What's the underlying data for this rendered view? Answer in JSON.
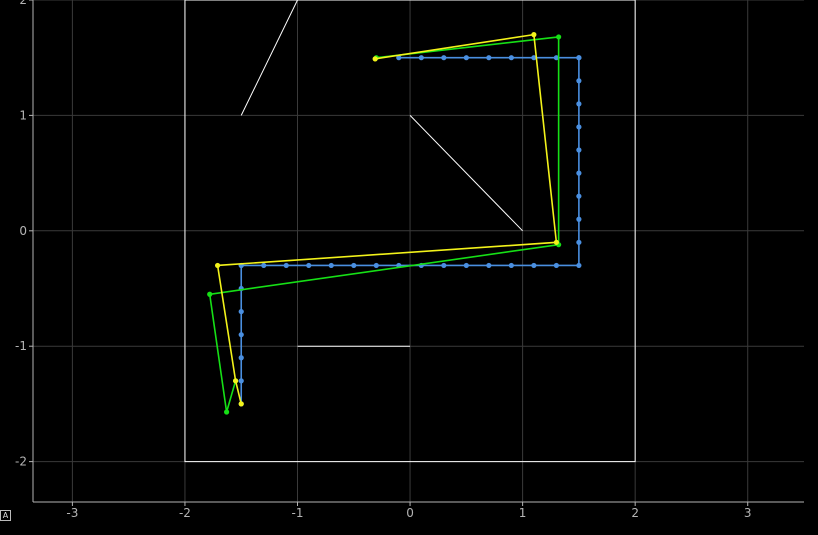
{
  "corner_button": {
    "label": "A"
  },
  "chart_data": {
    "type": "line",
    "xlim": [
      -3.35,
      3.5
    ],
    "ylim": [
      -2.35,
      2.0
    ],
    "x_ticks": [
      -3,
      -2,
      -1,
      0,
      1,
      2,
      3
    ],
    "y_ticks": [
      -2,
      -1,
      0,
      1,
      2
    ],
    "x_tick_labels": [
      "-3",
      "-2",
      "-1",
      "0",
      "1",
      "2",
      "3"
    ],
    "y_tick_labels": [
      "-2",
      "-1",
      "0",
      "1",
      "2"
    ],
    "grid": true,
    "title": "",
    "xlabel": "",
    "ylabel": "",
    "colors": {
      "grid": "#3a3a3a",
      "axis": "#b4b4b4",
      "walls": "#ffffff",
      "blue": "#4a8fe0",
      "green": "#16e016",
      "yellow": "#f3f31a"
    },
    "walls": [
      {
        "x": [
          -2,
          2,
          2,
          -2,
          -2
        ],
        "y": [
          2,
          2,
          -2,
          -2,
          2
        ]
      },
      {
        "x": [
          -1.5,
          -1
        ],
        "y": [
          1,
          2
        ]
      },
      {
        "x": [
          0,
          1
        ],
        "y": [
          1,
          0
        ]
      },
      {
        "x": [
          -1,
          0
        ],
        "y": [
          -1,
          -1
        ]
      }
    ],
    "series": [
      {
        "color": "blue",
        "x": [
          -1.5,
          -1.5,
          -1.5,
          -1.5,
          -1.5,
          -1.5,
          -1.5,
          -1.5,
          -1.3,
          -1.1,
          -0.9,
          -0.7,
          -0.5,
          -0.3,
          -0.1,
          0.1,
          0.3,
          0.5,
          0.7,
          0.9,
          1.1,
          1.3,
          1.5,
          1.5,
          1.5,
          1.5,
          1.5,
          1.5,
          1.5,
          1.5,
          1.5,
          1.5,
          1.5,
          1.3,
          1.1,
          0.9,
          0.7,
          0.5,
          0.3,
          0.1,
          -0.1
        ],
        "y": [
          -1.5,
          -1.3,
          -1.1,
          -0.9,
          -0.7,
          -0.5,
          -0.3,
          -0.3,
          -0.3,
          -0.3,
          -0.3,
          -0.3,
          -0.3,
          -0.3,
          -0.3,
          -0.3,
          -0.3,
          -0.3,
          -0.3,
          -0.3,
          -0.3,
          -0.3,
          -0.3,
          -0.1,
          0.1,
          0.3,
          0.5,
          0.7,
          0.9,
          1.1,
          1.3,
          1.5,
          1.5,
          1.5,
          1.5,
          1.5,
          1.5,
          1.5,
          1.5,
          1.5,
          1.5
        ]
      },
      {
        "color": "green",
        "x": [
          -1.55,
          -1.63,
          -1.78,
          1.32,
          1.32,
          -0.3
        ],
        "y": [
          -1.3,
          -1.57,
          -0.55,
          -0.12,
          1.68,
          1.5
        ]
      },
      {
        "color": "yellow",
        "x": [
          -1.5,
          -1.55,
          -1.71,
          1.3,
          1.1,
          -0.31
        ],
        "y": [
          -1.5,
          -1.3,
          -0.3,
          -0.1,
          1.7,
          1.49
        ]
      }
    ]
  }
}
